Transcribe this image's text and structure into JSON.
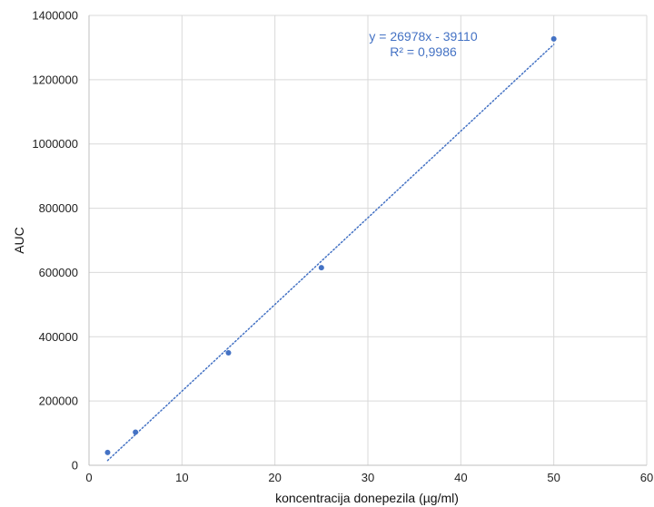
{
  "chart_data": {
    "type": "scatter",
    "title": "",
    "xlabel": "koncentracija donepezila (µg/ml)",
    "ylabel": "AUC",
    "xlim": [
      0,
      60
    ],
    "ylim": [
      0,
      1400000
    ],
    "xticks": [
      0,
      10,
      20,
      30,
      40,
      50,
      60
    ],
    "yticks": [
      0,
      200000,
      400000,
      600000,
      800000,
      1000000,
      1200000,
      1400000
    ],
    "grid": true,
    "series": [
      {
        "x": [
          2,
          5,
          15,
          25,
          50
        ],
        "y": [
          40000,
          103000,
          350000,
          615000,
          1327000
        ]
      }
    ],
    "trendline": {
      "type": "linear",
      "slope": 26978,
      "intercept": -39110,
      "x_range": [
        2,
        50
      ],
      "style": "dotted"
    },
    "annotations": {
      "equation": "y = 26978x - 39110",
      "r_squared": "R² = 0,9986"
    },
    "colors": {
      "marker": "#4472C4",
      "trendline": "#4472C4",
      "annotation": "#4472C4",
      "grid": "#d9d9d9",
      "axis": "#bfbfbf"
    }
  }
}
